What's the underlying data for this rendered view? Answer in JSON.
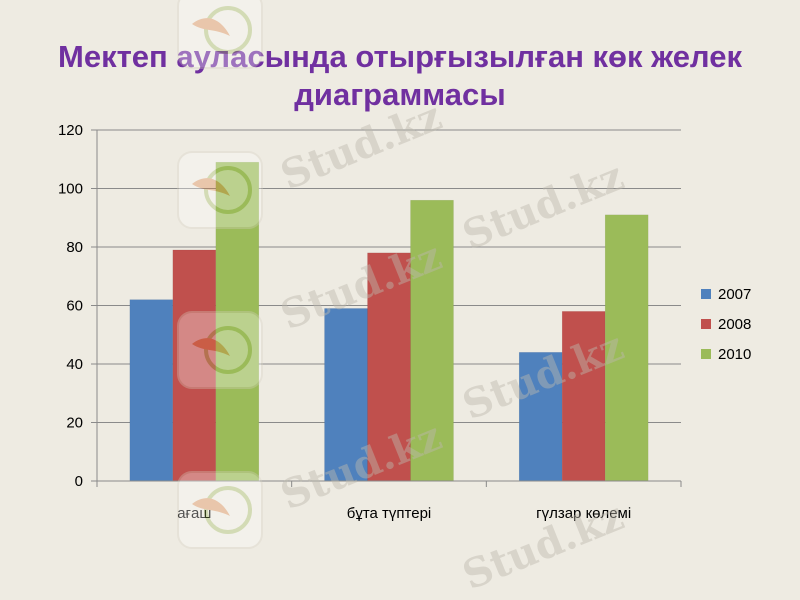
{
  "slide": {
    "title_line1": "Мектеп ауласында отырғызылған көк желек",
    "title_line2": "диаграммасы",
    "watermark_text": "Stud.kz"
  },
  "chart_data": {
    "type": "bar",
    "categories": [
      "ағаш",
      "бұта түптері",
      "гүлзар көлемі"
    ],
    "series": [
      {
        "name": "2007",
        "color": "#4f81bd",
        "values": [
          62,
          59,
          44
        ]
      },
      {
        "name": "2008",
        "color": "#c0504d",
        "values": [
          79,
          78,
          58
        ]
      },
      {
        "name": "2010",
        "color": "#9bbb59",
        "values": [
          109,
          96,
          91
        ]
      }
    ],
    "ylim": [
      0,
      120
    ],
    "yticks": [
      0,
      20,
      40,
      60,
      80,
      100,
      120
    ],
    "grid": true,
    "legend_position": "right"
  }
}
